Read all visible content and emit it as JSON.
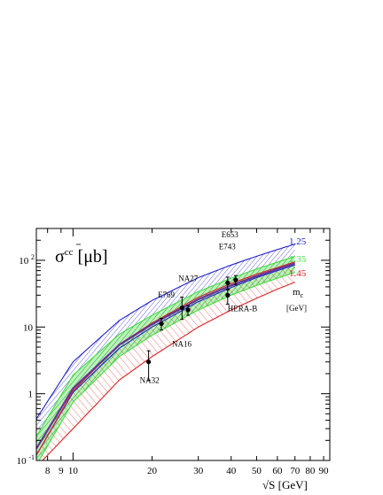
{
  "chart_data": {
    "type": "line",
    "title": "σcc̄ [μb]",
    "xlabel": "√S [GeV]",
    "ylabel": "",
    "xscale": "log",
    "yscale": "log",
    "xlim": [
      7.25,
      95
    ],
    "ylim": [
      0.1,
      300
    ],
    "grid": false,
    "x_tick_labels": [
      "8",
      "9",
      "10",
      "20",
      "30",
      "40",
      "50",
      "60",
      "70",
      "80",
      "90"
    ],
    "x_tick_values": [
      8,
      9,
      10,
      20,
      30,
      40,
      50,
      60,
      70,
      80,
      90
    ],
    "y_tick_labels": [
      {
        "base": "10",
        "exp": "-1",
        "value": 0.1
      },
      {
        "base": "1",
        "exp": "",
        "value": 1
      },
      {
        "base": "10",
        "exp": "",
        "value": 10
      },
      {
        "base": "10",
        "exp": "2",
        "value": 100
      }
    ],
    "legend": {
      "title": "m",
      "title_sub": "c",
      "unit": "[GeV]",
      "placement": "right",
      "entries": [
        {
          "label": "1.25",
          "color": "#2222cc"
        },
        {
          "label": "1.35",
          "color": "#44dd44"
        },
        {
          "label": "1.45",
          "color": "#dd2222"
        }
      ]
    },
    "series": [
      {
        "name": "1.25",
        "color": "#2222cc",
        "upper": {
          "x": [
            7.25,
            10,
            15,
            20,
            30,
            40,
            50,
            60,
            70
          ],
          "y": [
            0.42,
            3.0,
            12.5,
            25,
            55,
            85,
            115,
            145,
            175
          ]
        },
        "lower": {
          "x": [
            7.25,
            10,
            15,
            20,
            30,
            40,
            50,
            60,
            70
          ],
          "y": [
            0.12,
            1.05,
            4.8,
            10,
            24,
            39,
            55,
            70,
            85
          ]
        }
      },
      {
        "name": "1.35",
        "color": "#44dd44",
        "upper": {
          "x": [
            7.25,
            10,
            15,
            20,
            30,
            40,
            50,
            60,
            70
          ],
          "y": [
            0.23,
            1.9,
            7.8,
            15,
            34,
            54,
            74,
            94,
            115
          ]
        },
        "lower": {
          "x": [
            7.25,
            10,
            15,
            20,
            30,
            40,
            50,
            60,
            70
          ],
          "y": [
            0.085,
            0.75,
            3.6,
            7.5,
            18,
            30,
            42,
            54,
            66
          ]
        }
      },
      {
        "name": "1.45",
        "color": "#dd2222",
        "upper": {
          "x": [
            7.25,
            10,
            15,
            20,
            30,
            40,
            50,
            60,
            70
          ],
          "y": [
            0.12,
            1.1,
            5.5,
            11.5,
            28,
            45,
            62,
            78,
            95
          ]
        },
        "lower": {
          "x": [
            7.65,
            10,
            15,
            20,
            30,
            40,
            50,
            60,
            70
          ],
          "y": [
            0.1,
            0.3,
            1.6,
            3.6,
            10,
            18,
            27,
            37,
            47
          ]
        }
      }
    ],
    "central_line": {
      "color": "#663399",
      "x": [
        7.25,
        10,
        15,
        20,
        30,
        40,
        50,
        60,
        70
      ],
      "y": [
        0.15,
        1.2,
        5.4,
        11,
        26,
        42,
        58,
        74,
        90
      ]
    },
    "points": [
      {
        "label": "NA32",
        "x": 19.4,
        "y": 3.0,
        "ylo": 1.6,
        "yhi": 4.4
      },
      {
        "label": "NA16",
        "x": 21.7,
        "y": 11.2,
        "ylo": 9.0,
        "yhi": 13.5
      },
      {
        "label": "NA27",
        "x": 26.0,
        "y": 19.5,
        "ylo": 13.0,
        "yhi": 28.0
      },
      {
        "label": "E769",
        "x": 27.4,
        "y": 18.0,
        "ylo": 15.0,
        "yhi": 21.0
      },
      {
        "label": "HERA-B",
        "x": 38.8,
        "y": 30.0,
        "ylo": 22.0,
        "yhi": 37.0
      },
      {
        "label": "E743",
        "x": 38.8,
        "y": 46.0,
        "ylo": 36.0,
        "yhi": 56.0
      },
      {
        "label": "E653",
        "x": 41.6,
        "y": 51.0,
        "ylo": 43.0,
        "yhi": 59.0
      }
    ]
  }
}
